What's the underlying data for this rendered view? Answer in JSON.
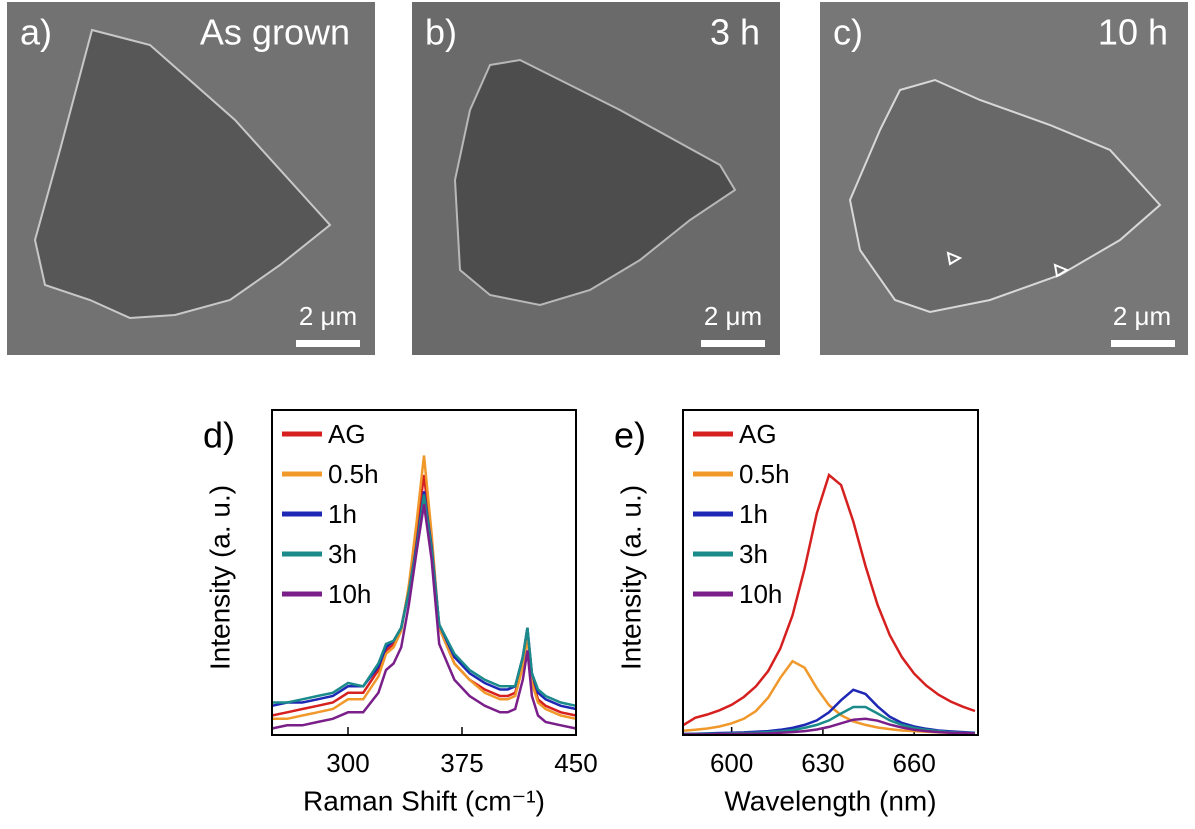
{
  "panels": [
    {
      "label": "a)",
      "caption": "As grown",
      "scale_bar": "2 μm"
    },
    {
      "label": "b)",
      "caption": "3 h",
      "scale_bar": "2 μm"
    },
    {
      "label": "c)",
      "caption": "10 h",
      "scale_bar": "2 μm"
    }
  ],
  "chart_data": [
    {
      "type": "line",
      "label": "d)",
      "xlabel": "Raman Shift (cm⁻¹)",
      "ylabel": "Intensity (a. u.)",
      "xlim": [
        250,
        450
      ],
      "xticks": [
        300,
        375,
        450
      ],
      "ylim": [
        0,
        100
      ],
      "legend": "upper-left",
      "x": [
        250,
        260,
        270,
        280,
        290,
        300,
        310,
        320,
        325,
        330,
        335,
        340,
        345,
        350,
        355,
        360,
        370,
        380,
        390,
        400,
        405,
        410,
        415,
        418,
        421,
        425,
        430,
        440,
        450
      ],
      "series": [
        {
          "name": "AG",
          "color": "#d62020",
          "values": [
            6,
            7,
            8,
            9,
            10,
            13,
            13,
            20,
            26,
            28,
            33,
            45,
            62,
            80,
            60,
            33,
            22,
            17,
            14,
            12,
            12,
            13,
            22,
            31,
            17,
            11,
            9,
            7,
            6
          ]
        },
        {
          "name": "0.5h",
          "color": "#f0982a",
          "values": [
            5,
            5,
            6,
            7,
            8,
            11,
            11,
            18,
            25,
            27,
            32,
            46,
            65,
            86,
            62,
            33,
            22,
            17,
            13,
            11,
            11,
            12,
            21,
            30,
            16,
            10,
            8,
            6,
            5
          ]
        },
        {
          "name": "1h",
          "color": "#1e28b4",
          "values": [
            9,
            10,
            10,
            11,
            12,
            15,
            15,
            21,
            27,
            29,
            33,
            44,
            58,
            75,
            58,
            34,
            24,
            19,
            16,
            14,
            14,
            15,
            24,
            33,
            19,
            13,
            11,
            9,
            8
          ]
        },
        {
          "name": "3h",
          "color": "#1a8a8a",
          "values": [
            10,
            10,
            11,
            12,
            13,
            16,
            15,
            22,
            28,
            29,
            33,
            44,
            57,
            74,
            57,
            34,
            25,
            20,
            17,
            15,
            15,
            15,
            24,
            33,
            19,
            14,
            12,
            10,
            9
          ]
        },
        {
          "name": "10h",
          "color": "#7a1f8a",
          "values": [
            2,
            3,
            3,
            4,
            5,
            7,
            7,
            13,
            20,
            22,
            27,
            40,
            56,
            71,
            54,
            28,
            17,
            12,
            9,
            7,
            7,
            8,
            17,
            26,
            12,
            6,
            4,
            3,
            2
          ]
        }
      ]
    },
    {
      "type": "line",
      "label": "e)",
      "xlabel": "Wavelength (nm)",
      "ylabel": "Intensity (a. u.)",
      "xlim": [
        584,
        681
      ],
      "xticks": [
        600,
        630,
        660
      ],
      "ylim": [
        0,
        100
      ],
      "legend": "upper-left",
      "x": [
        584,
        588,
        592,
        596,
        600,
        604,
        608,
        612,
        616,
        620,
        624,
        628,
        632,
        636,
        640,
        644,
        648,
        652,
        656,
        660,
        664,
        668,
        672,
        676,
        680
      ],
      "series": [
        {
          "name": "AG",
          "color": "#d62020",
          "values": [
            3,
            5.3,
            6.3,
            7.6,
            9.3,
            11.7,
            15,
            19.7,
            26.6,
            36.8,
            51.2,
            68.2,
            80,
            76.9,
            65.7,
            52,
            40,
            30.7,
            23.9,
            18.9,
            15.2,
            12.4,
            10.3,
            8.7,
            7.4
          ]
        },
        {
          "name": "0.5h",
          "color": "#f0982a",
          "values": [
            1.3,
            1.6,
            2,
            2.6,
            3.6,
            5,
            7.4,
            11.5,
            17.6,
            22.7,
            20.7,
            14.4,
            9.2,
            6.1,
            4.2,
            3.1,
            2.3,
            1.8,
            1.4,
            1.2,
            1,
            0.8,
            0.7,
            0.6,
            0.5
          ]
        },
        {
          "name": "1h",
          "color": "#1e28b4",
          "values": [
            0.3,
            0.4,
            0.5,
            0.6,
            0.7,
            0.8,
            1,
            1.2,
            1.6,
            2.2,
            3.1,
            4.5,
            7,
            10.7,
            13.9,
            12.6,
            8.8,
            5.6,
            3.7,
            2.6,
            1.9,
            1.4,
            1.1,
            0.9,
            0.7
          ]
        },
        {
          "name": "3h",
          "color": "#1a8a8a",
          "values": [
            0.3,
            0.3,
            0.4,
            0.4,
            0.5,
            0.6,
            0.7,
            0.9,
            1.1,
            1.5,
            2.2,
            3.1,
            4.5,
            6.6,
            8.6,
            8.6,
            6.6,
            4.5,
            3.1,
            2.2,
            1.6,
            1.2,
            0.9,
            0.7,
            0.6
          ]
        },
        {
          "name": "10h",
          "color": "#7a1f8a",
          "values": [
            0.2,
            0.2,
            0.2,
            0.3,
            0.3,
            0.4,
            0.4,
            0.5,
            0.7,
            0.9,
            1.2,
            1.7,
            2.5,
            3.6,
            4.7,
            5,
            4.4,
            3.2,
            2.3,
            1.6,
            1.2,
            0.9,
            0.7,
            0.6,
            0.5
          ]
        }
      ]
    }
  ]
}
